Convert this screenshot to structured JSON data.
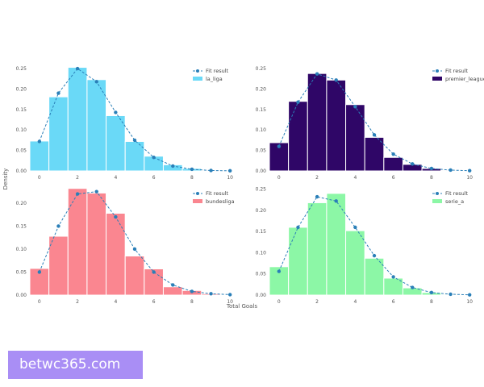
{
  "chart_data": [
    {
      "type": "bar",
      "name": "la_liga",
      "bar_color": "#6ad9f7",
      "categories": [
        0,
        1,
        2,
        3,
        4,
        5,
        6,
        7,
        8,
        9
      ],
      "values": [
        0.073,
        0.181,
        0.253,
        0.223,
        0.135,
        0.072,
        0.036,
        0.015,
        0.006,
        0.002
      ],
      "fit": {
        "x": [
          0,
          1,
          2,
          3,
          4,
          5,
          6,
          7,
          8,
          9,
          10
        ],
        "y": [
          0.072,
          0.19,
          0.25,
          0.218,
          0.143,
          0.075,
          0.033,
          0.012,
          0.004,
          0.001,
          0.0003
        ]
      },
      "legend": [
        "Fit result",
        "la_liga"
      ],
      "xticks": [
        "0",
        "2",
        "4",
        "6",
        "8",
        "10"
      ],
      "yticks": [
        "0.00",
        "0.05",
        "0.10",
        "0.15",
        "0.20",
        "0.25"
      ],
      "xlim": [
        -0.5,
        10.5
      ],
      "ylim": [
        0,
        0.26
      ]
    },
    {
      "type": "bar",
      "name": "premier_league",
      "bar_color": "#2f0667",
      "categories": [
        0,
        1,
        2,
        3,
        4,
        5,
        6,
        7,
        8,
        9
      ],
      "values": [
        0.069,
        0.17,
        0.238,
        0.222,
        0.162,
        0.082,
        0.033,
        0.016,
        0.006,
        0.002
      ],
      "fit": {
        "x": [
          0,
          1,
          2,
          3,
          4,
          5,
          6,
          7,
          8,
          9,
          10
        ],
        "y": [
          0.06,
          0.168,
          0.237,
          0.222,
          0.157,
          0.088,
          0.041,
          0.017,
          0.006,
          0.002,
          0.0006
        ]
      },
      "legend": [
        "Fit result",
        "premier_league"
      ],
      "xticks": [
        "0",
        "2",
        "4",
        "6",
        "8",
        "10"
      ],
      "yticks": [
        "0.00",
        "0.05",
        "0.10",
        "0.15",
        "0.20",
        "0.25"
      ],
      "xlim": [
        -0.5,
        10.5
      ],
      "ylim": [
        0,
        0.26
      ]
    },
    {
      "type": "bar",
      "name": "bundesliga",
      "bar_color": "#fa8690",
      "categories": [
        0,
        1,
        2,
        3,
        4,
        5,
        6,
        7,
        8,
        9
      ],
      "values": [
        0.058,
        0.128,
        0.232,
        0.222,
        0.178,
        0.085,
        0.057,
        0.018,
        0.01,
        0.003
      ],
      "fit": {
        "x": [
          0,
          1,
          2,
          3,
          4,
          5,
          6,
          7,
          8,
          9,
          10
        ],
        "y": [
          0.05,
          0.15,
          0.22,
          0.225,
          0.17,
          0.1,
          0.05,
          0.022,
          0.008,
          0.003,
          0.001
        ]
      },
      "legend": [
        "Fit result",
        "bundesliga"
      ],
      "xticks": [
        "0",
        "2",
        "4",
        "6",
        "8",
        "10"
      ],
      "yticks": [
        "0.00",
        "0.05",
        "0.10",
        "0.15",
        "0.20"
      ],
      "xlim": [
        -0.5,
        10.5
      ],
      "ylim": [
        0,
        0.235
      ]
    },
    {
      "type": "bar",
      "name": "serie_a",
      "bar_color": "#8cf7a6",
      "categories": [
        0,
        1,
        2,
        3,
        4,
        5,
        6,
        7,
        8,
        9
      ],
      "values": [
        0.067,
        0.16,
        0.218,
        0.24,
        0.152,
        0.087,
        0.04,
        0.017,
        0.006,
        0.002
      ],
      "fit": {
        "x": [
          0,
          1,
          2,
          3,
          4,
          5,
          6,
          7,
          8,
          9,
          10
        ],
        "y": [
          0.056,
          0.16,
          0.232,
          0.222,
          0.16,
          0.093,
          0.043,
          0.018,
          0.006,
          0.002,
          0.0006
        ]
      },
      "legend": [
        "Fit result",
        "serie_a"
      ],
      "xticks": [
        "0",
        "2",
        "4",
        "6",
        "8",
        "10"
      ],
      "yticks": [
        "0.00",
        "0.05",
        "0.10",
        "0.15",
        "0.20",
        "0.25"
      ],
      "xlim": [
        -0.5,
        10.5
      ],
      "ylim": [
        0,
        0.255
      ]
    }
  ],
  "axes": {
    "xlabel": "Total Goals",
    "ylabel": "Density"
  },
  "fit_color": "#2a7fb8",
  "watermark": "betwc365.com"
}
